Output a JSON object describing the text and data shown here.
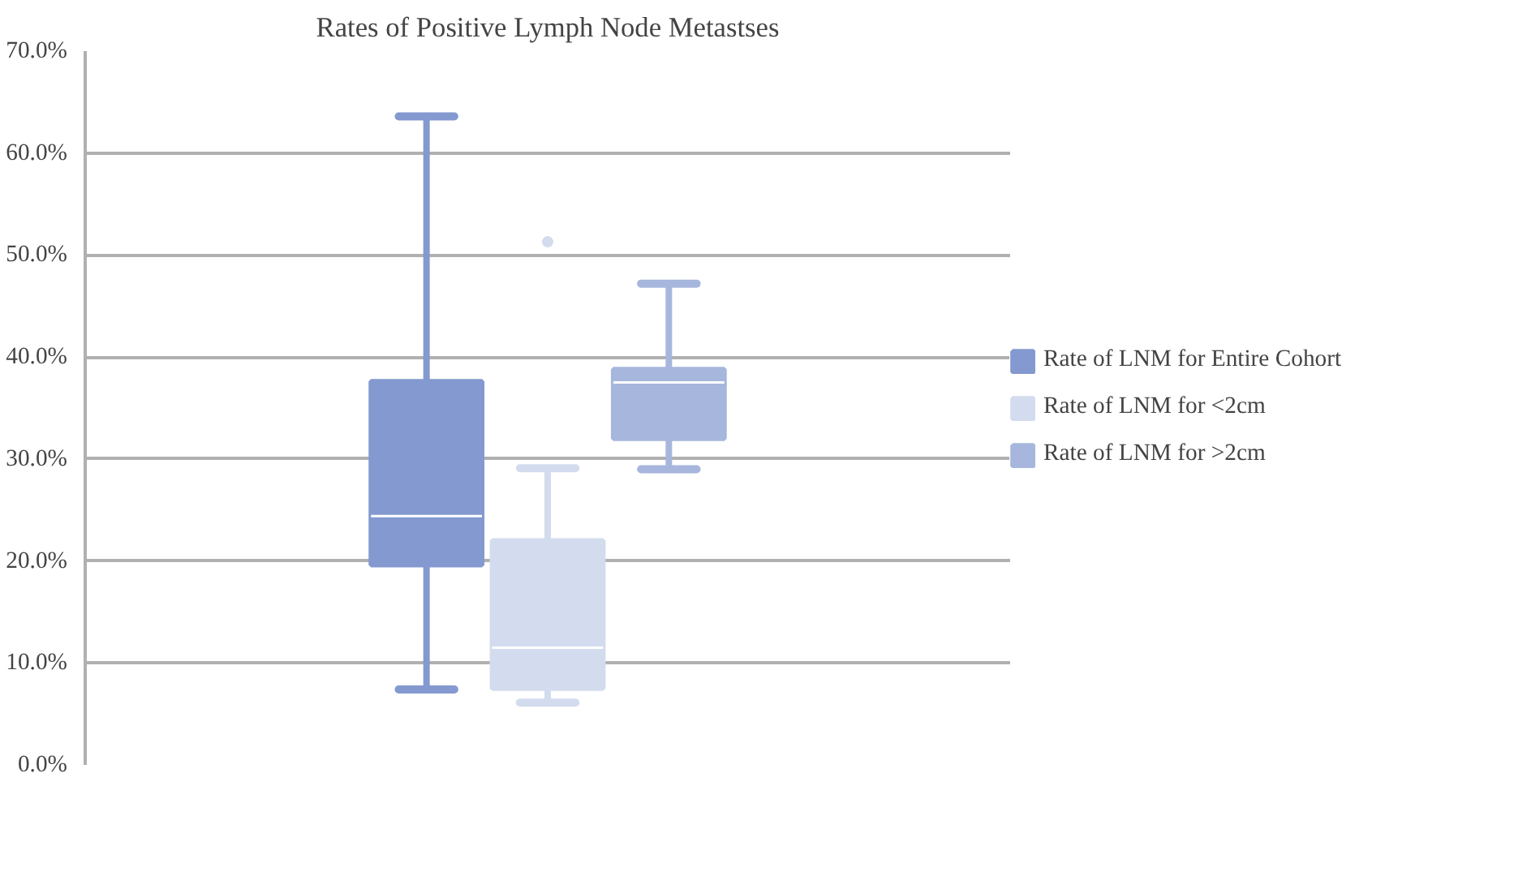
{
  "chart_data": {
    "type": "box",
    "title": "Rates of Positive Lymph Node Metastses",
    "categories": [
      null
    ],
    "series": [
      {
        "name": "Rate of LNM for Entire Cohort",
        "color": "#8399cf",
        "boxes": [
          {
            "low": 7.4,
            "q1": 19.6,
            "median": 24.4,
            "q3": 37.6,
            "high": 63.6
          }
        ]
      },
      {
        "name": "Rate of LNM for <2cm",
        "color": "#d3dcee",
        "boxes": [
          {
            "low": 6.1,
            "q1": 7.5,
            "median": 11.5,
            "q3": 22.0,
            "high": 29.1,
            "outliers": [
              51.3
            ]
          }
        ]
      },
      {
        "name": "Rate of LNM for >2cm",
        "color": "#a7b6dc",
        "boxes": [
          {
            "low": 29.0,
            "q1": 32.0,
            "median": 37.5,
            "q3": 38.8,
            "high": 47.2
          }
        ]
      }
    ],
    "ylim": [
      0,
      70
    ],
    "yticks": [
      {
        "value": 0,
        "label": "0.0%"
      },
      {
        "value": 10,
        "label": "10.0%"
      },
      {
        "value": 20,
        "label": "20.0%"
      },
      {
        "value": 30,
        "label": "30.0%"
      },
      {
        "value": 40,
        "label": "40.0%"
      },
      {
        "value": 50,
        "label": "50.0%"
      },
      {
        "value": 60,
        "label": "60.0%"
      },
      {
        "value": 70,
        "label": "70.0%"
      }
    ],
    "grid": "y",
    "legend": "right",
    "tick_labels": "y"
  }
}
